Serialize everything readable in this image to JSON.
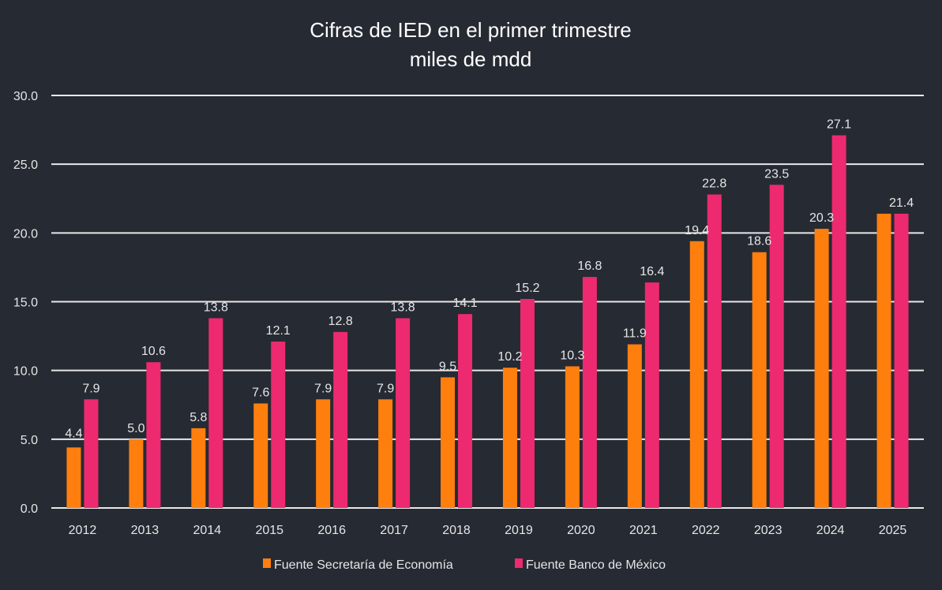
{
  "chart_data": {
    "type": "bar",
    "title": "Cifras de IED en el primer trimestre",
    "subtitle": "miles de mdd",
    "xlabel": "",
    "ylabel": "",
    "ylim": [
      0,
      30
    ],
    "yticks": [
      "0.0",
      "5.0",
      "10.0",
      "15.0",
      "20.0",
      "25.0",
      "30.0"
    ],
    "grid": true,
    "legend_position": "bottom",
    "categories": [
      "2012",
      "2013",
      "2014",
      "2015",
      "2016",
      "2017",
      "2018",
      "2019",
      "2020",
      "2021",
      "2022",
      "2023",
      "2024",
      "2025"
    ],
    "series": [
      {
        "name": "Fuente Secretaría de Economía",
        "color": "#ff7f0e",
        "values": [
          4.4,
          5.0,
          5.8,
          7.6,
          7.9,
          7.9,
          9.5,
          10.2,
          10.3,
          11.9,
          19.4,
          18.6,
          20.3,
          21.4
        ],
        "labels": [
          "4.4",
          "5.0",
          "5.8",
          "7.6",
          "7.9",
          "7.9",
          "9.5",
          "10.2",
          "10.3",
          "11.9",
          "19.4",
          "18.6",
          "20.3",
          ""
        ]
      },
      {
        "name": "Fuente Banco de México",
        "color": "#ed2a6f",
        "values": [
          7.9,
          10.6,
          13.8,
          12.1,
          12.8,
          13.8,
          14.1,
          15.2,
          16.8,
          16.4,
          22.8,
          23.5,
          27.1,
          21.4
        ],
        "labels": [
          "7.9",
          "10.6",
          "13.8",
          "12.1",
          "12.8",
          "13.8",
          "14.1",
          "15.2",
          "16.8",
          "16.4",
          "22.8",
          "23.5",
          "27.1",
          "21.4"
        ]
      }
    ]
  }
}
